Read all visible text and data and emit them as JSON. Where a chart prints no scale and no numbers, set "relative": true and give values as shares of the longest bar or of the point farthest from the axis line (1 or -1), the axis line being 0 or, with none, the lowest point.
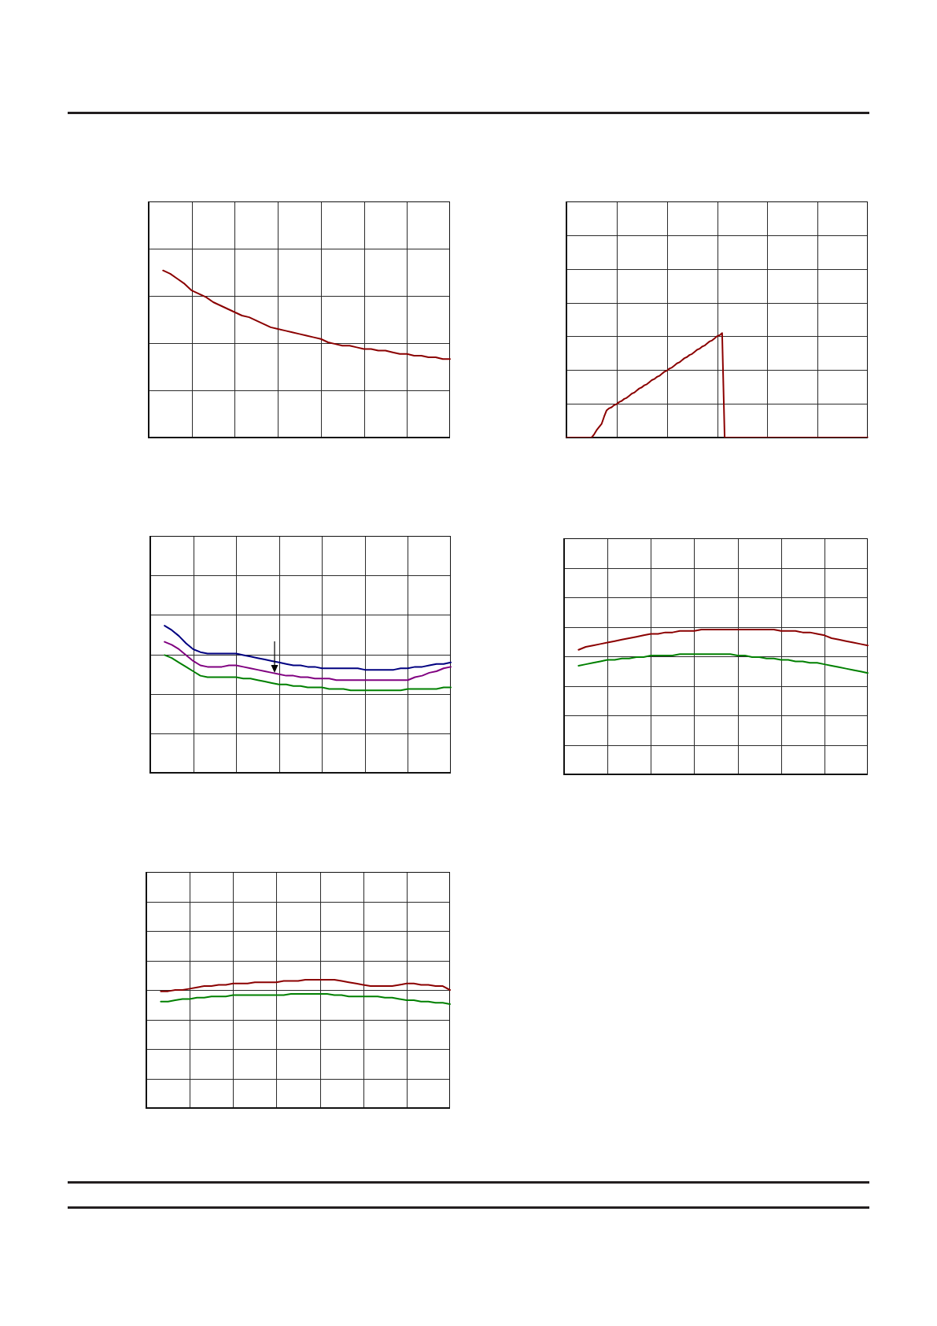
{
  "chart_data": [
    {
      "type": "line",
      "relative": true,
      "grid": true,
      "tick_labels": false,
      "color": "#8b0000",
      "categories": [
        null,
        null,
        null,
        null,
        null,
        null,
        null,
        null,
        null,
        null,
        null,
        null,
        null,
        null,
        null,
        null,
        null,
        null,
        null,
        null,
        null,
        null,
        null,
        null,
        null,
        null,
        null,
        null,
        null,
        null,
        null,
        null,
        null,
        null,
        null,
        null,
        null,
        null,
        null,
        null,
        null,
        null,
        null
      ],
      "values": [
        null,
        null,
        1,
        0.98,
        0.95,
        0.92,
        0.88,
        0.86,
        0.84,
        0.81,
        0.79,
        0.77,
        0.75,
        0.73,
        0.72,
        0.7,
        0.68,
        0.66,
        0.65,
        0.64,
        0.63,
        0.62,
        0.61,
        0.6,
        0.59,
        0.57,
        0.56,
        0.55,
        0.55,
        0.54,
        0.53,
        0.53,
        0.52,
        0.52,
        0.51,
        0.5,
        0.5,
        0.49,
        0.49,
        0.48,
        0.48,
        0.47,
        0.47
      ]
    },
    {
      "type": "line",
      "relative": true,
      "grid": true,
      "tick_labels": false,
      "color": "#8b0000",
      "categories": [
        null,
        null,
        null,
        null,
        null,
        null,
        null,
        null,
        null,
        null,
        null,
        null,
        null,
        null,
        null,
        null,
        null,
        null,
        null,
        null,
        null,
        null,
        null,
        null,
        null,
        null,
        null,
        null,
        null,
        null,
        null,
        null,
        null,
        null,
        null,
        null,
        null,
        null,
        null,
        null,
        null,
        null,
        null,
        null,
        null,
        null,
        null,
        null,
        null,
        null,
        null,
        null,
        null,
        null,
        null,
        null,
        null,
        null,
        null,
        null,
        null,
        null,
        null,
        null,
        null,
        null,
        null,
        null,
        null,
        null,
        null,
        null,
        null,
        null,
        null,
        null,
        null,
        null,
        null,
        null,
        null,
        null,
        null,
        null,
        null,
        null,
        null,
        null,
        null,
        null,
        null,
        null,
        null,
        null,
        null,
        null,
        null,
        null,
        null,
        null,
        null,
        null,
        null,
        null,
        null,
        null,
        null,
        null,
        null,
        null,
        null,
        null,
        null,
        null,
        null,
        null,
        null,
        null,
        null,
        null,
        null
      ],
      "values": [
        0,
        0,
        0,
        0,
        0,
        0,
        0,
        0,
        0,
        0,
        0,
        0.03,
        0.07,
        0.1,
        0.13,
        0.2,
        0.26,
        0.28,
        0.29,
        0.31,
        0.32,
        0.34,
        0.35,
        0.37,
        0.38,
        0.4,
        0.42,
        0.43,
        0.45,
        0.47,
        0.48,
        0.5,
        0.51,
        0.53,
        0.55,
        0.56,
        0.58,
        0.59,
        0.61,
        0.63,
        0.64,
        0.66,
        0.67,
        0.69,
        0.71,
        0.72,
        0.74,
        0.76,
        0.77,
        0.79,
        0.8,
        0.82,
        0.84,
        0.85,
        0.87,
        0.88,
        0.9,
        0.92,
        0.93,
        0.95,
        0.97,
        0.98,
        1,
        0,
        0,
        0,
        0,
        0,
        0,
        0,
        0,
        0,
        0,
        0,
        0,
        0,
        0,
        0,
        0,
        0,
        0,
        0,
        0,
        0,
        0,
        0,
        0,
        0,
        0,
        0,
        0,
        0,
        0,
        0,
        0,
        0,
        0,
        0,
        0,
        0,
        0,
        0,
        0,
        0,
        0,
        0,
        0,
        0,
        0,
        0,
        0,
        0,
        0,
        0,
        0,
        0,
        0,
        0,
        0,
        0,
        0
      ]
    },
    {
      "type": "line",
      "relative": true,
      "grid": true,
      "tick_labels": false,
      "categories": [
        null,
        null,
        null,
        null,
        null,
        null,
        null,
        null,
        null,
        null,
        null,
        null,
        null,
        null,
        null,
        null,
        null,
        null,
        null,
        null,
        null,
        null,
        null,
        null,
        null,
        null,
        null,
        null,
        null,
        null,
        null,
        null,
        null,
        null,
        null,
        null,
        null,
        null,
        null,
        null,
        null,
        null,
        null
      ],
      "series": [
        {
          "color": "#000080",
          "values": [
            null,
            null,
            1,
            0.97,
            0.93,
            0.88,
            0.84,
            0.82,
            0.81,
            0.81,
            0.81,
            0.81,
            0.81,
            0.8,
            0.79,
            0.78,
            0.77,
            0.76,
            0.75,
            0.74,
            0.73,
            0.73,
            0.72,
            0.72,
            0.71,
            0.71,
            0.71,
            0.71,
            0.71,
            0.71,
            0.7,
            0.7,
            0.7,
            0.7,
            0.7,
            0.71,
            0.71,
            0.72,
            0.72,
            0.73,
            0.74,
            0.74,
            0.75
          ]
        },
        {
          "color": "#800080",
          "values": [
            null,
            null,
            0.89,
            0.87,
            0.84,
            0.8,
            0.76,
            0.73,
            0.72,
            0.72,
            0.72,
            0.73,
            0.73,
            0.72,
            0.71,
            0.7,
            0.69,
            0.68,
            0.67,
            0.66,
            0.66,
            0.65,
            0.65,
            0.64,
            0.64,
            0.64,
            0.63,
            0.63,
            0.63,
            0.63,
            0.63,
            0.63,
            0.63,
            0.63,
            0.63,
            0.63,
            0.63,
            0.65,
            0.66,
            0.68,
            0.69,
            0.71,
            0.72
          ]
        },
        {
          "color": "#008000",
          "values": [
            null,
            null,
            0.8,
            0.78,
            0.75,
            0.72,
            0.69,
            0.66,
            0.65,
            0.65,
            0.65,
            0.65,
            0.65,
            0.64,
            0.64,
            0.63,
            0.62,
            0.61,
            0.6,
            0.6,
            0.59,
            0.59,
            0.58,
            0.58,
            0.58,
            0.57,
            0.57,
            0.57,
            0.56,
            0.56,
            0.56,
            0.56,
            0.56,
            0.56,
            0.56,
            0.56,
            0.57,
            0.57,
            0.57,
            0.57,
            0.57,
            0.58,
            0.58
          ]
        }
      ]
    },
    {
      "type": "line",
      "relative": true,
      "grid": true,
      "tick_labels": false,
      "categories": [
        null,
        null,
        null,
        null,
        null,
        null,
        null,
        null,
        null,
        null,
        null,
        null,
        null,
        null,
        null,
        null,
        null,
        null,
        null,
        null,
        null,
        null,
        null,
        null,
        null,
        null,
        null,
        null,
        null,
        null,
        null,
        null,
        null,
        null,
        null,
        null,
        null,
        null,
        null,
        null,
        null,
        null,
        null
      ],
      "series": [
        {
          "color": "#8b0000",
          "values": [
            null,
            null,
            0.86,
            0.88,
            0.89,
            0.9,
            0.91,
            0.92,
            0.93,
            0.94,
            0.95,
            0.96,
            0.97,
            0.97,
            0.98,
            0.98,
            0.99,
            0.99,
            0.99,
            1,
            1,
            1,
            1,
            1,
            1,
            1,
            1,
            1,
            1,
            1,
            0.99,
            0.99,
            0.99,
            0.98,
            0.98,
            0.97,
            0.96,
            0.94,
            0.93,
            0.92,
            0.91,
            0.9,
            0.89
          ]
        },
        {
          "color": "#008000",
          "values": [
            null,
            null,
            0.75,
            0.76,
            0.77,
            0.78,
            0.79,
            0.79,
            0.8,
            0.8,
            0.81,
            0.81,
            0.82,
            0.82,
            0.82,
            0.82,
            0.83,
            0.83,
            0.83,
            0.83,
            0.83,
            0.83,
            0.83,
            0.83,
            0.82,
            0.82,
            0.81,
            0.81,
            0.8,
            0.8,
            0.79,
            0.79,
            0.78,
            0.78,
            0.77,
            0.77,
            0.76,
            0.75,
            0.74,
            0.73,
            0.72,
            0.71,
            0.7
          ]
        }
      ]
    },
    {
      "type": "line",
      "relative": true,
      "grid": true,
      "tick_labels": false,
      "categories": [
        null,
        null,
        null,
        null,
        null,
        null,
        null,
        null,
        null,
        null,
        null,
        null,
        null,
        null,
        null,
        null,
        null,
        null,
        null,
        null,
        null,
        null,
        null,
        null,
        null,
        null,
        null,
        null,
        null,
        null,
        null,
        null,
        null,
        null,
        null,
        null,
        null,
        null,
        null,
        null,
        null,
        null,
        null
      ],
      "series": [
        {
          "color": "#8b0000",
          "values": [
            null,
            null,
            0.91,
            0.91,
            0.92,
            0.92,
            0.93,
            0.94,
            0.95,
            0.95,
            0.96,
            0.96,
            0.97,
            0.97,
            0.97,
            0.98,
            0.98,
            0.98,
            0.98,
            0.99,
            0.99,
            0.99,
            1,
            1,
            1,
            1,
            1,
            0.99,
            0.98,
            0.97,
            0.96,
            0.95,
            0.95,
            0.95,
            0.95,
            0.96,
            0.97,
            0.97,
            0.96,
            0.96,
            0.95,
            0.95,
            0.92
          ]
        },
        {
          "color": "#008000",
          "values": [
            null,
            null,
            0.83,
            0.83,
            0.84,
            0.85,
            0.85,
            0.86,
            0.86,
            0.87,
            0.87,
            0.87,
            0.88,
            0.88,
            0.88,
            0.88,
            0.88,
            0.88,
            0.88,
            0.88,
            0.89,
            0.89,
            0.89,
            0.89,
            0.89,
            0.89,
            0.88,
            0.88,
            0.87,
            0.87,
            0.87,
            0.87,
            0.87,
            0.86,
            0.86,
            0.85,
            0.84,
            0.84,
            0.83,
            0.83,
            0.82,
            0.82,
            0.81
          ]
        }
      ]
    }
  ]
}
